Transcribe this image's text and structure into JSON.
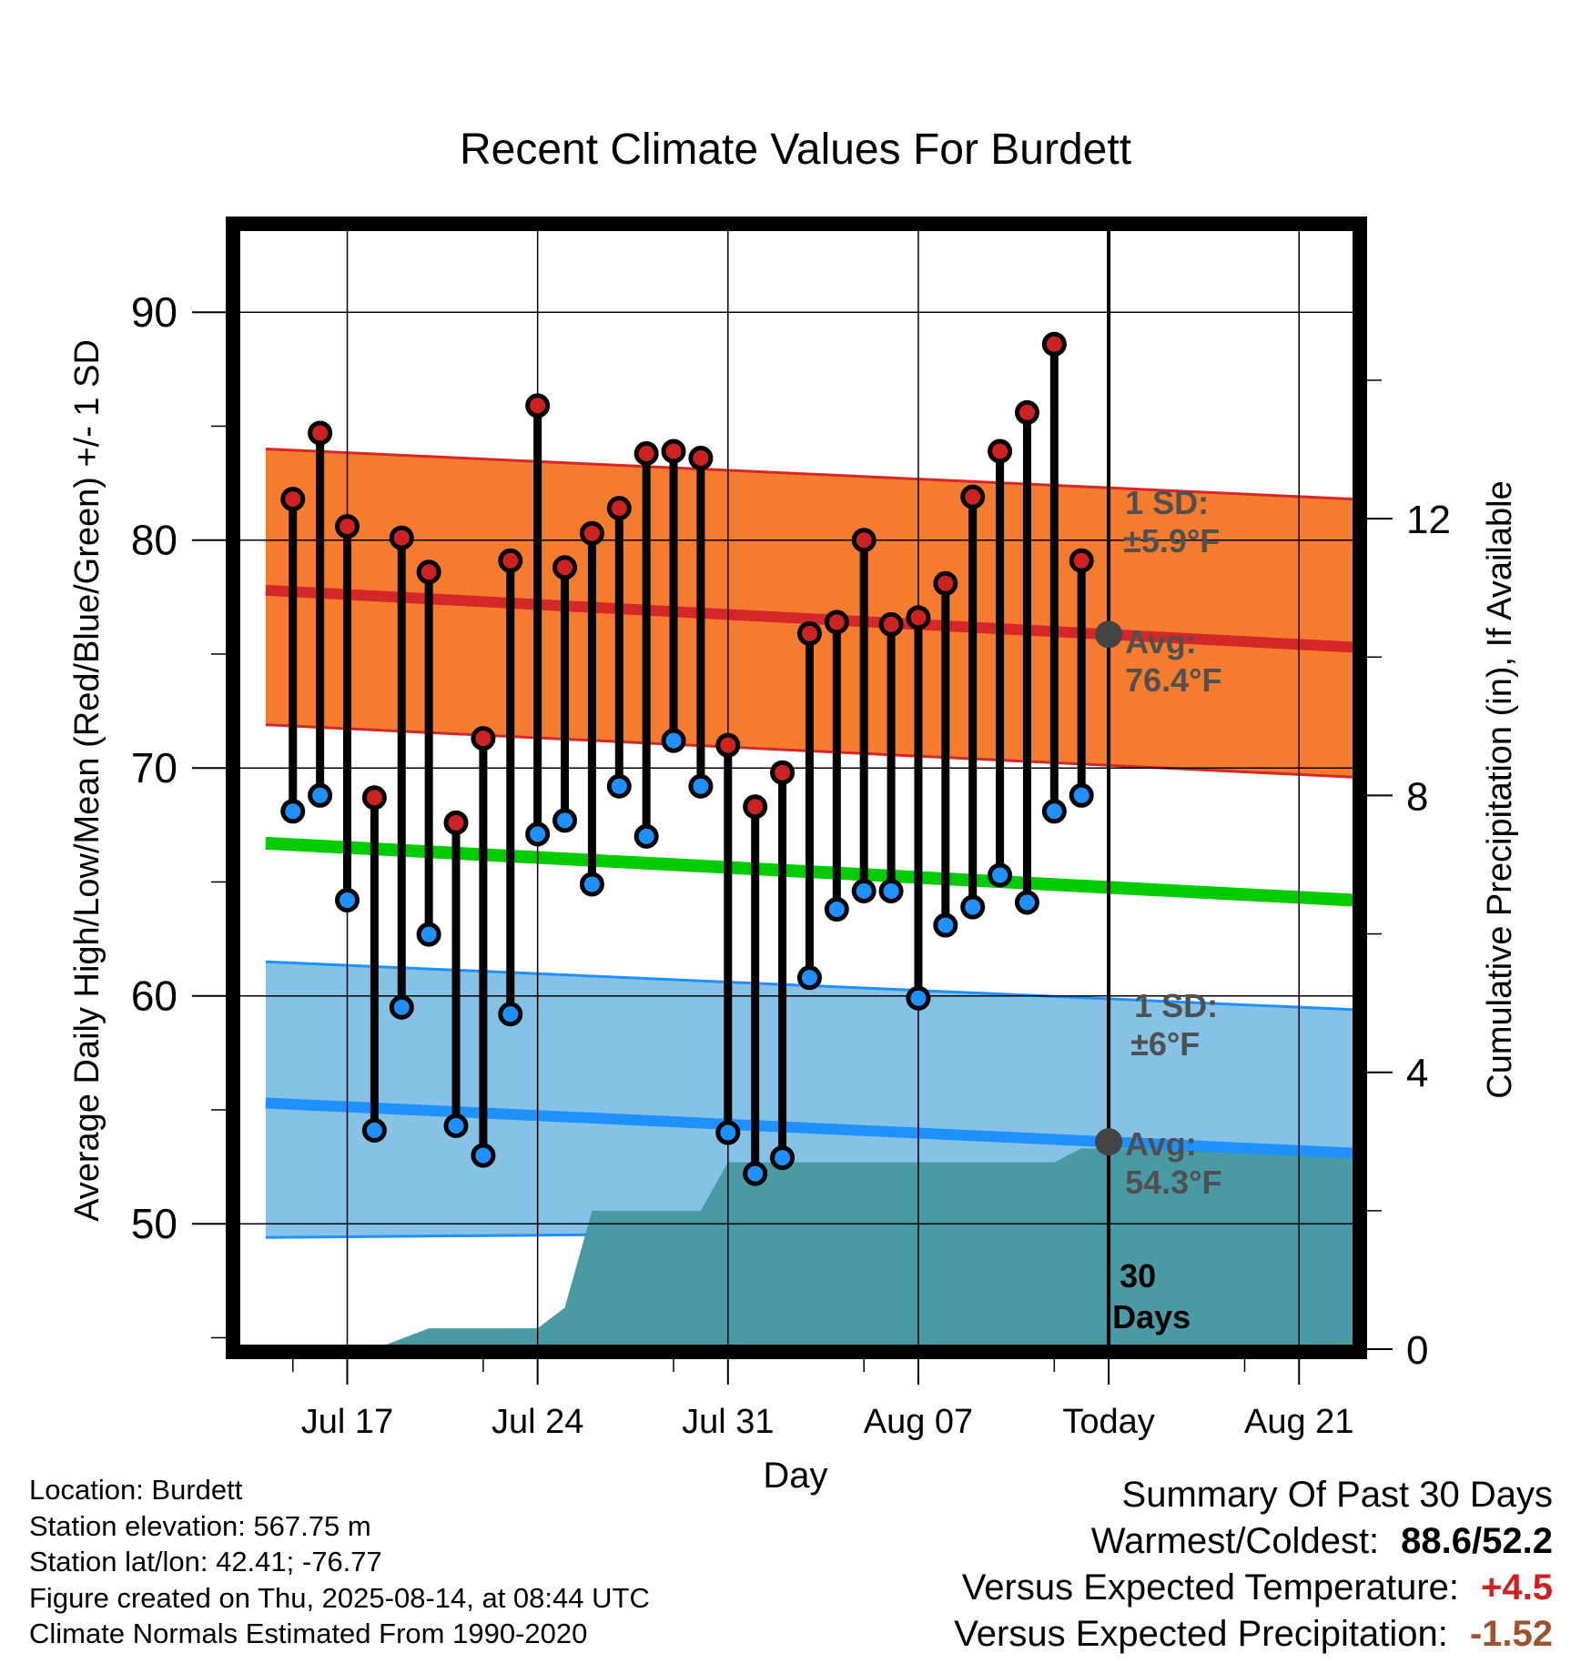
{
  "chart_data": {
    "type": "line",
    "title": "Recent Climate Values For Burdett",
    "xlabel": "Day",
    "ylabel": "Average Daily High/Low/Mean (Red/Blue/Green) +/- 1 SD",
    "y2label": "Cumulative Precipitation (in), If Available",
    "ylim": [
      44.5,
      94
    ],
    "y2lim": [
      0,
      16.3
    ],
    "xlim": [
      "Jul 13",
      "Aug 23"
    ],
    "x_ticks": [
      "Jul 17",
      "Jul 24",
      "Jul 31",
      "Aug 07",
      "Today",
      "Aug 21"
    ],
    "y_ticks": [
      50,
      60,
      70,
      80,
      90
    ],
    "y2_ticks": [
      0,
      4,
      8,
      12
    ],
    "today": "Aug 14",
    "grid": true,
    "daily_observations": {
      "dates": [
        "Jul 15",
        "Jul 16",
        "Jul 17",
        "Jul 18",
        "Jul 19",
        "Jul 20",
        "Jul 21",
        "Jul 22",
        "Jul 23",
        "Jul 24",
        "Jul 25",
        "Jul 26",
        "Jul 27",
        "Jul 28",
        "Jul 29",
        "Jul 30",
        "Jul 31",
        "Aug 01",
        "Aug 02",
        "Aug 03",
        "Aug 04",
        "Aug 05",
        "Aug 06",
        "Aug 07",
        "Aug 08",
        "Aug 09",
        "Aug 10",
        "Aug 11",
        "Aug 12",
        "Aug 13"
      ],
      "high": [
        81.8,
        84.7,
        80.6,
        68.7,
        80.1,
        78.6,
        67.6,
        71.3,
        79.1,
        85.9,
        78.8,
        80.3,
        81.4,
        83.8,
        83.9,
        83.6,
        71.0,
        68.3,
        69.8,
        75.9,
        76.4,
        80.0,
        76.3,
        76.6,
        78.1,
        81.9,
        83.9,
        85.6,
        88.6,
        79.1
      ],
      "low": [
        68.1,
        68.8,
        64.2,
        54.1,
        59.5,
        62.7,
        54.3,
        53.0,
        59.2,
        67.1,
        67.7,
        64.9,
        69.2,
        67.0,
        71.2,
        69.2,
        54.0,
        52.2,
        52.9,
        60.8,
        63.8,
        64.6,
        64.6,
        59.9,
        63.1,
        63.9,
        65.3,
        64.1,
        68.1,
        68.8
      ]
    },
    "normals": {
      "dates": [
        "Jul 14",
        "Aug 23"
      ],
      "avg_high": [
        77.8,
        75.3
      ],
      "avg_high_sd_upper": [
        84.0,
        81.8
      ],
      "avg_high_sd_lower": [
        71.9,
        69.6
      ],
      "avg_mean": [
        66.7,
        64.2
      ],
      "avg_low": [
        55.3,
        53.1
      ],
      "avg_low_sd_upper": [
        61.5,
        59.4
      ],
      "avg_low_sd_lower": [
        49.4,
        49.8
      ]
    },
    "precipitation": {
      "dates": [
        "Jul 18",
        "Jul 20",
        "Jul 24",
        "Jul 25",
        "Jul 26",
        "Jul 30",
        "Jul 31",
        "Aug 12",
        "Aug 13",
        "Aug 23"
      ],
      "cumulative": [
        0.0,
        0.3,
        0.3,
        0.6,
        2.0,
        2.0,
        2.7,
        2.7,
        2.9,
        2.9
      ]
    },
    "annotations": {
      "high_sd_label": "1 SD:",
      "high_sd_value": "±5.9°F",
      "high_avg_label": "Avg:",
      "high_avg_value": "76.4°F",
      "low_sd_label": "1 SD:",
      "low_sd_value": "±6°F",
      "low_avg_label": "Avg:",
      "low_avg_value": "54.3°F",
      "days_count": "30",
      "days_word": "Days"
    },
    "colors": {
      "high_band": "#f57c2e",
      "high_line": "#d62728",
      "low_band": "#86c1e6",
      "low_line": "#1e90ff",
      "mean_line": "#00cc00",
      "precip": "#4a9aa5",
      "high_dot": "#cc2222",
      "low_dot": "#1e90ff",
      "avg_marker": "#444444",
      "annotation_text": "#505050"
    }
  },
  "footer": {
    "location": "Location: Burdett",
    "elevation": "Station elevation: 567.75 m",
    "latlon": "Station lat/lon: 42.41; -76.77",
    "created": "Figure created on Thu, 2025-08-14, at 08:44 UTC",
    "normals_source": "Climate Normals Estimated From 1990-2020"
  },
  "summary": {
    "heading": "Summary Of Past 30 Days",
    "warmest_coldest_label": "Warmest/Coldest:",
    "warmest_coldest_value": "88.6/52.2",
    "temp_label": "Versus Expected Temperature:",
    "temp_value": "+4.5",
    "temp_color": "#cc2222",
    "precip_label": "Versus Expected Precipitation:",
    "precip_value": "-1.52",
    "precip_color": "#a0522d"
  }
}
